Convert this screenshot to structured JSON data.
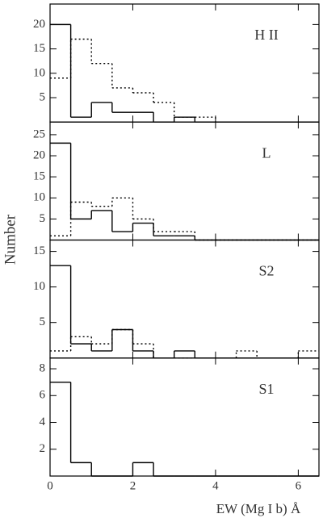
{
  "chart_data": [
    {
      "type": "histogram",
      "title": "H II",
      "ylim": [
        0,
        24.2
      ],
      "yticks": [
        5,
        10,
        15,
        20
      ],
      "bins": [
        0,
        0.5,
        1,
        1.5,
        2,
        2.5,
        3,
        3.5,
        4,
        4.5,
        5,
        5.5,
        6,
        6.5
      ],
      "series": [
        {
          "color": "#000000",
          "dash": "solid",
          "values": [
            20,
            1,
            4,
            2,
            2,
            0,
            1,
            0,
            0,
            0,
            0,
            0,
            0
          ]
        },
        {
          "color": "#000000",
          "dash": "dotted",
          "values": [
            9,
            17,
            12,
            7,
            6,
            4,
            1,
            1,
            0,
            0,
            0,
            0,
            0
          ]
        }
      ]
    },
    {
      "type": "histogram",
      "title": "L",
      "ylim": [
        0,
        28
      ],
      "yticks": [
        5,
        10,
        15,
        20,
        25
      ],
      "bins": [
        0,
        0.5,
        1,
        1.5,
        2,
        2.5,
        3,
        3.5,
        4,
        4.5,
        5,
        5.5,
        6,
        6.5
      ],
      "series": [
        {
          "color": "#000000",
          "dash": "solid",
          "values": [
            23,
            5,
            7,
            2,
            4,
            1,
            1,
            0,
            0,
            0,
            0,
            0,
            0
          ]
        },
        {
          "color": "#000000",
          "dash": "dotted",
          "values": [
            1,
            9,
            8,
            10,
            5,
            2,
            2,
            0,
            0,
            0,
            0,
            0,
            0
          ]
        }
      ]
    },
    {
      "type": "histogram",
      "title": "S2",
      "ylim": [
        0,
        16.6
      ],
      "yticks": [
        5,
        10,
        15
      ],
      "bins": [
        0,
        0.5,
        1,
        1.5,
        2,
        2.5,
        3,
        3.5,
        4,
        4.5,
        5,
        5.5,
        6,
        6.5
      ],
      "series": [
        {
          "color": "#000000",
          "dash": "solid",
          "values": [
            13,
            2,
            1,
            4,
            1,
            0,
            1,
            0,
            0,
            0,
            0,
            0,
            0
          ]
        },
        {
          "color": "#000000",
          "dash": "dotted",
          "values": [
            1,
            3,
            2,
            4,
            2,
            0,
            0,
            0,
            0,
            1,
            0,
            0,
            1
          ]
        }
      ]
    },
    {
      "type": "histogram",
      "title": "S1",
      "ylim": [
        0,
        8.8
      ],
      "yticks": [
        2,
        4,
        6,
        8
      ],
      "bins": [
        0,
        0.5,
        1,
        1.5,
        2,
        2.5,
        3,
        3.5,
        4,
        4.5,
        5,
        5.5,
        6,
        6.5
      ],
      "series": [
        {
          "color": "#000000",
          "dash": "solid",
          "values": [
            7,
            1,
            0,
            0,
            1,
            0,
            0,
            0,
            0,
            0,
            0,
            0,
            0
          ]
        }
      ],
      "xlim": [
        0,
        6.5
      ],
      "xticks": [
        0,
        2,
        4,
        6
      ],
      "xlabel": "EW (Mg I b) Å",
      "ylabel": "Number"
    }
  ]
}
